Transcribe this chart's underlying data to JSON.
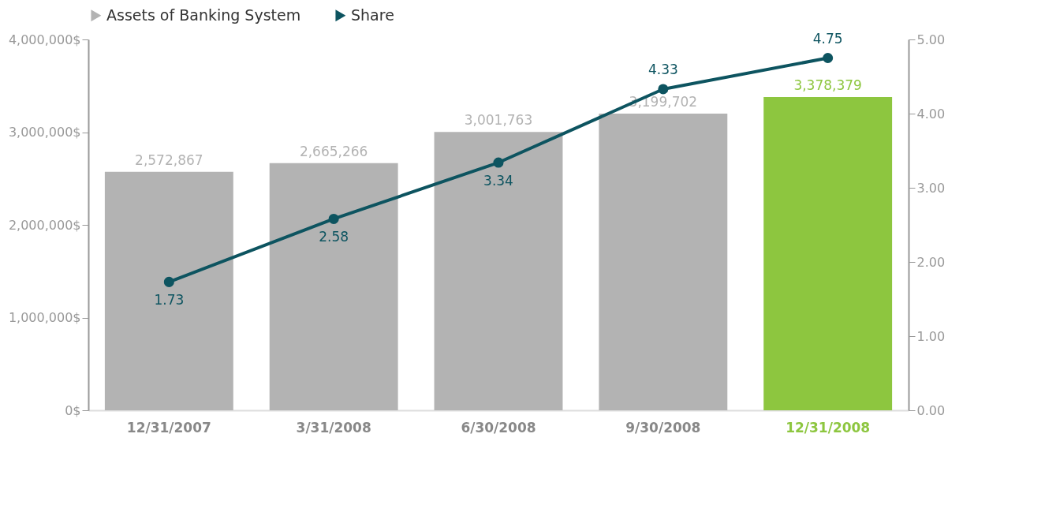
{
  "chart_data": {
    "type": "bar",
    "categories": [
      "12/31/2007",
      "3/31/2008",
      "6/30/2008",
      "9/30/2008",
      "12/31/2008"
    ],
    "series": [
      {
        "name": "Assets of Banking System",
        "color": "#b3b3b3",
        "colors": [
          "#b3b3b3",
          "#b3b3b3",
          "#b3b3b3",
          "#b3b3b3",
          "#8dc63f"
        ],
        "values": [
          2572867,
          2665266,
          3001763,
          3199702,
          3378379
        ],
        "value_labels": [
          "2,572,867",
          "2,665,266",
          "3,001,763",
          "3,199,702",
          "3,378,379"
        ]
      },
      {
        "name": "Share",
        "type": "line",
        "axis": "y2",
        "color": "#0d5460",
        "values": [
          1.73,
          2.58,
          3.34,
          4.33,
          4.75
        ],
        "value_labels": [
          "1.73",
          "2.58",
          "3.34",
          "4.33",
          "4.75"
        ]
      }
    ],
    "ylim": [
      0,
      4000000
    ],
    "yticks": [
      {
        "value": 0,
        "label": "0$"
      },
      {
        "value": 1000000,
        "label": "1,000,000$"
      },
      {
        "value": 2000000,
        "label": "2,000,000$"
      },
      {
        "value": 3000000,
        "label": "3,000,000$"
      },
      {
        "value": 4000000,
        "label": "4,000,000$"
      }
    ],
    "y2lim": [
      0,
      5
    ],
    "y2ticks": [
      {
        "value": 0,
        "label": "0.00"
      },
      {
        "value": 1,
        "label": "1.00"
      },
      {
        "value": 2,
        "label": "2.00"
      },
      {
        "value": 3,
        "label": "3.00"
      },
      {
        "value": 4,
        "label": "4.00"
      },
      {
        "value": 5,
        "label": "5.00"
      }
    ],
    "grid": false,
    "legend": "top left",
    "marker": "circle",
    "line_style": "solid"
  }
}
